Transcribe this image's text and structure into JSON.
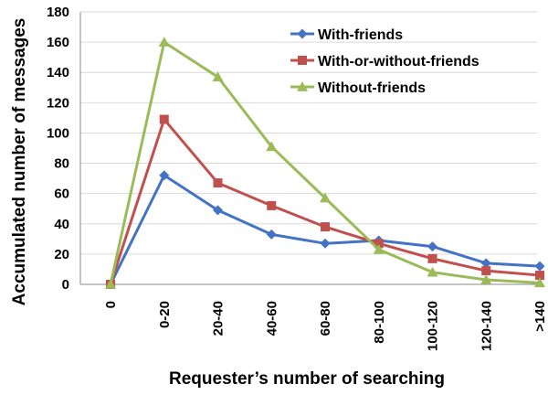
{
  "chart_data": {
    "type": "line",
    "categories": [
      "0",
      "0-20",
      "20-40",
      "40-60",
      "60-80",
      "80-100",
      "100-120",
      "120-140",
      ">140"
    ],
    "series": [
      {
        "name": "With-friends",
        "color": "#4472C4",
        "marker": "diamond",
        "values": [
          0,
          72,
          49,
          33,
          27,
          29,
          25,
          14,
          12
        ]
      },
      {
        "name": "With-or-without-friends",
        "color": "#C0504D",
        "marker": "square",
        "values": [
          0,
          109,
          67,
          52,
          38,
          27,
          17,
          9,
          6
        ]
      },
      {
        "name": "Without-friends",
        "color": "#9BBB59",
        "marker": "triangle",
        "values": [
          0,
          160,
          137,
          91,
          57,
          23,
          8,
          3,
          1
        ]
      }
    ],
    "xlabel": "Requester’s number of searching",
    "ylabel": "Accumulated number of messages",
    "ylim": [
      0,
      180
    ],
    "yticks": [
      0,
      20,
      40,
      60,
      80,
      100,
      120,
      140,
      160,
      180
    ],
    "grid": true,
    "legend_position": "top-right"
  }
}
